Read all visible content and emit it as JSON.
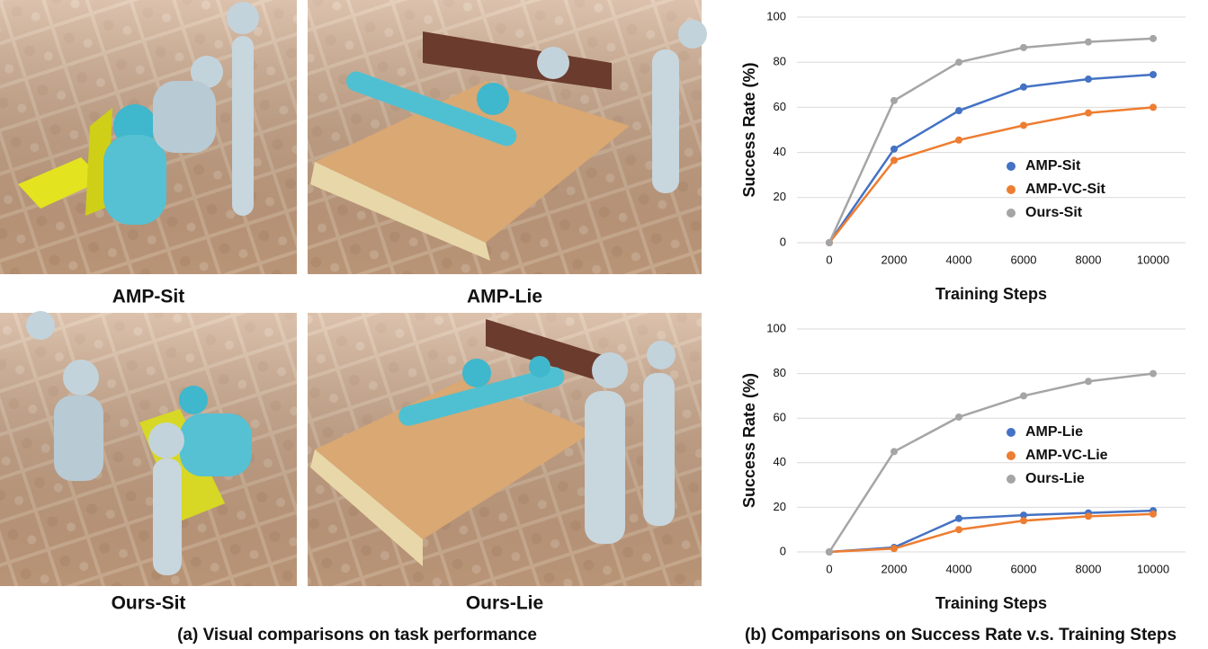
{
  "panels": [
    {
      "label": "AMP-Sit"
    },
    {
      "label": "AMP-Lie"
    },
    {
      "label": "Ours-Sit"
    },
    {
      "label": "Ours-Lie"
    }
  ],
  "captions": [
    "(a) Visual comparisons on task performance",
    "(b) Comparisons on Success Rate v.s. Training Steps"
  ],
  "chart_data": [
    {
      "type": "line",
      "y_label": "Success Rate (%)",
      "x_label": "Training Steps",
      "categories": [
        "0",
        "2000",
        "4000",
        "6000",
        "8000",
        "10000"
      ],
      "ylim": [
        0,
        100
      ],
      "yticks": [
        0,
        20,
        40,
        60,
        80,
        100
      ],
      "grid": true,
      "series": [
        {
          "name": "AMP-Sit",
          "color": "#4472c4",
          "values": [
            0,
            41.5,
            58.5,
            69,
            72.5,
            74.5
          ]
        },
        {
          "name": "AMP-VC-Sit",
          "color": "#ed7d31",
          "values": [
            0,
            36.5,
            45.5,
            52,
            57.5,
            60
          ]
        },
        {
          "name": "Ours-Sit",
          "color": "#a5a5a5",
          "values": [
            0,
            63,
            80,
            86.5,
            89,
            90.5
          ]
        }
      ]
    },
    {
      "type": "line",
      "y_label": "Success Rate (%)",
      "x_label": "Training Steps",
      "categories": [
        "0",
        "2000",
        "4000",
        "6000",
        "8000",
        "10000"
      ],
      "ylim": [
        0,
        100
      ],
      "yticks": [
        0,
        20,
        40,
        60,
        80,
        100
      ],
      "grid": true,
      "series": [
        {
          "name": "AMP-Lie",
          "color": "#4472c4",
          "values": [
            0,
            2,
            15,
            16.5,
            17.5,
            18.5
          ]
        },
        {
          "name": "AMP-VC-Lie",
          "color": "#ed7d31",
          "values": [
            0,
            1.5,
            10,
            14,
            16,
            17
          ]
        },
        {
          "name": "Ours-Lie",
          "color": "#a5a5a5",
          "values": [
            0,
            45,
            60.5,
            70,
            76.5,
            80
          ]
        }
      ]
    }
  ]
}
